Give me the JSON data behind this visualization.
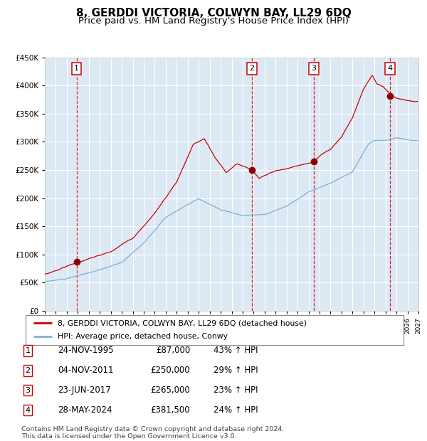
{
  "title": "8, GERDDI VICTORIA, COLWYN BAY, LL29 6DQ",
  "subtitle": "Price paid vs. HM Land Registry's House Price Index (HPI)",
  "ylim": [
    0,
    450000
  ],
  "yticks": [
    0,
    50000,
    100000,
    150000,
    200000,
    250000,
    300000,
    350000,
    400000,
    450000
  ],
  "xlim_start": 1993.0,
  "xlim_end": 2027.0,
  "plot_bg_color": "#dce9f5",
  "grid_color": "#ffffff",
  "hpi_line_color": "#7bafd4",
  "price_line_color": "#cc0000",
  "sale_marker_color": "#8b0000",
  "dashed_line_color": "#cc0000",
  "sale_dates_decimal": [
    1995.9,
    2011.84,
    2017.48,
    2024.41
  ],
  "sale_prices": [
    87000,
    250000,
    265000,
    381500
  ],
  "sale_labels": [
    "1",
    "2",
    "3",
    "4"
  ],
  "legend_line1": "8, GERDDI VICTORIA, COLWYN BAY, LL29 6DQ (detached house)",
  "legend_line2": "HPI: Average price, detached house, Conwy",
  "table_data": [
    [
      "1",
      "24-NOV-1995",
      "£87,000",
      "43% ↑ HPI"
    ],
    [
      "2",
      "04-NOV-2011",
      "£250,000",
      "29% ↑ HPI"
    ],
    [
      "3",
      "23-JUN-2017",
      "£265,000",
      "23% ↑ HPI"
    ],
    [
      "4",
      "28-MAY-2024",
      "£381,500",
      "24% ↑ HPI"
    ]
  ],
  "footer": "Contains HM Land Registry data © Crown copyright and database right 2024.\nThis data is licensed under the Open Government Licence v3.0.",
  "title_fontsize": 11,
  "subtitle_fontsize": 9.5
}
